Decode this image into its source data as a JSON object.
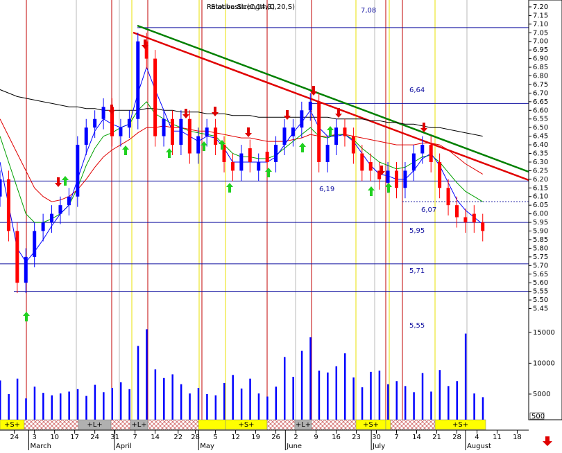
{
  "chart_data": {
    "type": "candlestick",
    "overlay_texts": [
      "Relative Strength(C,20,S)",
      "Stochastic(C,14,3)"
    ],
    "x": [
      0,
      3,
      6,
      9,
      12,
      15,
      18,
      21,
      24,
      27,
      30,
      33,
      36,
      39,
      42,
      45,
      48,
      51,
      54,
      57,
      60,
      63,
      66,
      69,
      72,
      75,
      78,
      81,
      84,
      87,
      90,
      93,
      96,
      99,
      102,
      105,
      108,
      111,
      114,
      117,
      120,
      123,
      126,
      129,
      132,
      135,
      138,
      141,
      144,
      147,
      150,
      153,
      156,
      159,
      162,
      165,
      168
    ],
    "open": [
      6.1,
      6.2,
      5.9,
      5.6,
      5.75,
      5.9,
      5.95,
      6.0,
      6.05,
      6.1,
      6.4,
      6.5,
      6.55,
      6.62,
      6.45,
      6.5,
      6.55,
      7.0,
      6.9,
      6.45,
      6.55,
      6.4,
      6.55,
      6.35,
      6.45,
      6.5,
      6.4,
      6.3,
      6.25,
      6.38,
      6.25,
      6.36,
      6.3,
      6.4,
      6.45,
      6.5,
      6.6,
      6.65,
      6.3,
      6.4,
      6.5,
      6.45,
      6.35,
      6.3,
      6.25,
      6.18,
      6.25,
      6.15,
      6.25,
      6.35,
      6.4,
      6.3,
      6.15,
      6.05,
      5.98,
      6.0,
      5.95
    ],
    "high": [
      6.25,
      6.25,
      5.95,
      5.8,
      5.95,
      6.0,
      6.05,
      6.1,
      6.15,
      6.45,
      6.55,
      6.6,
      6.67,
      6.67,
      6.55,
      6.6,
      7.05,
      7.05,
      6.95,
      6.6,
      6.6,
      6.6,
      6.6,
      6.5,
      6.55,
      6.55,
      6.45,
      6.35,
      6.4,
      6.43,
      6.35,
      6.41,
      6.45,
      6.55,
      6.55,
      6.65,
      6.7,
      6.7,
      6.45,
      6.55,
      6.55,
      6.5,
      6.4,
      6.35,
      6.3,
      6.3,
      6.3,
      6.3,
      6.4,
      6.45,
      6.45,
      6.35,
      6.2,
      6.1,
      6.03,
      6.05,
      6.0
    ],
    "low": [
      6.04,
      5.84,
      5.54,
      5.54,
      5.69,
      5.84,
      5.89,
      5.94,
      5.99,
      6.04,
      6.34,
      6.44,
      6.49,
      6.39,
      6.39,
      6.44,
      6.49,
      6.84,
      6.39,
      6.39,
      6.34,
      6.34,
      6.29,
      6.29,
      6.39,
      6.34,
      6.24,
      6.19,
      6.19,
      6.24,
      6.19,
      6.24,
      6.24,
      6.34,
      6.39,
      6.44,
      6.54,
      6.24,
      6.24,
      6.34,
      6.39,
      6.29,
      6.19,
      6.19,
      6.14,
      6.12,
      6.09,
      6.09,
      6.19,
      6.29,
      6.24,
      6.09,
      5.99,
      5.92,
      5.89,
      5.89,
      5.84
    ],
    "close": [
      6.2,
      5.9,
      5.6,
      5.75,
      5.9,
      5.95,
      6.0,
      6.05,
      6.1,
      6.4,
      6.5,
      6.55,
      6.62,
      6.45,
      6.5,
      6.55,
      7.0,
      6.9,
      6.45,
      6.55,
      6.4,
      6.55,
      6.35,
      6.45,
      6.5,
      6.4,
      6.3,
      6.25,
      6.35,
      6.3,
      6.3,
      6.3,
      6.4,
      6.5,
      6.5,
      6.6,
      6.65,
      6.3,
      6.4,
      6.5,
      6.45,
      6.35,
      6.25,
      6.25,
      6.2,
      6.25,
      6.15,
      6.25,
      6.35,
      6.4,
      6.3,
      6.15,
      6.05,
      5.98,
      5.95,
      5.95,
      5.9
    ],
    "up_color": "#0000ff",
    "down_color": "#ff0000",
    "xlim": [
      0,
      184
    ],
    "ylim": [
      5.42,
      7.24
    ],
    "yticks": [
      {
        "value": 7.2,
        "label": "7.20"
      },
      {
        "value": 7.15,
        "label": "7.15"
      },
      {
        "value": 7.1,
        "label": "7.10"
      },
      {
        "value": 7.05,
        "label": "7.05"
      },
      {
        "value": 7.0,
        "label": "7.00"
      },
      {
        "value": 6.95,
        "label": "6.95"
      },
      {
        "value": 6.9,
        "label": "6.90"
      },
      {
        "value": 6.85,
        "label": "6.85"
      },
      {
        "value": 6.8,
        "label": "6.80"
      },
      {
        "value": 6.75,
        "label": "6.75"
      },
      {
        "value": 6.7,
        "label": "6.70"
      },
      {
        "value": 6.65,
        "label": "6.65"
      },
      {
        "value": 6.6,
        "label": "6.60"
      },
      {
        "value": 6.55,
        "label": "6.55"
      },
      {
        "value": 6.5,
        "label": "6.50"
      },
      {
        "value": 6.45,
        "label": "6.45"
      },
      {
        "value": 6.4,
        "label": "6.40"
      },
      {
        "value": 6.35,
        "label": "6.35"
      },
      {
        "value": 6.3,
        "label": "6.30"
      },
      {
        "value": 6.25,
        "label": "6.25"
      },
      {
        "value": 6.2,
        "label": "6.20"
      },
      {
        "value": 6.15,
        "label": "6.15"
      },
      {
        "value": 6.1,
        "label": "6.10"
      },
      {
        "value": 6.05,
        "label": "6.05"
      },
      {
        "value": 6.0,
        "label": "6.00"
      },
      {
        "value": 5.95,
        "label": "5.95"
      },
      {
        "value": 5.9,
        "label": "5.90"
      },
      {
        "value": 5.85,
        "label": "5.85"
      },
      {
        "value": 5.8,
        "label": "5.80"
      },
      {
        "value": 5.75,
        "label": "5.75"
      },
      {
        "value": 5.7,
        "label": "5.70"
      },
      {
        "value": 5.65,
        "label": "5.65"
      },
      {
        "value": 5.6,
        "label": "5.60"
      },
      {
        "value": 5.55,
        "label": "5.55"
      },
      {
        "value": 5.5,
        "label": "5.50"
      },
      {
        "value": 5.45,
        "label": "5.45"
      }
    ],
    "moving_averages": [
      {
        "color": "#000000",
        "values": [
          6.72,
          6.7,
          6.68,
          6.67,
          6.66,
          6.65,
          6.64,
          6.63,
          6.62,
          6.62,
          6.61,
          6.61,
          6.6,
          6.6,
          6.6,
          6.6,
          6.6,
          6.61,
          6.61,
          6.6,
          6.6,
          6.59,
          6.59,
          6.59,
          6.58,
          6.58,
          6.58,
          6.57,
          6.57,
          6.57,
          6.56,
          6.56,
          6.56,
          6.56,
          6.56,
          6.56,
          6.56,
          6.56,
          6.56,
          6.55,
          6.55,
          6.55,
          6.55,
          6.54,
          6.54,
          6.53,
          6.53,
          6.52,
          6.52,
          6.51,
          6.5,
          6.5,
          6.49,
          6.48,
          6.47,
          6.46,
          6.45
        ]
      },
      {
        "color": "#e00000",
        "values": [
          6.55,
          6.45,
          6.35,
          6.25,
          6.15,
          6.1,
          6.07,
          6.08,
          6.1,
          6.14,
          6.2,
          6.27,
          6.33,
          6.37,
          6.4,
          6.43,
          6.47,
          6.5,
          6.5,
          6.51,
          6.5,
          6.5,
          6.49,
          6.48,
          6.48,
          6.47,
          6.46,
          6.45,
          6.44,
          6.44,
          6.43,
          6.42,
          6.42,
          6.42,
          6.43,
          6.44,
          6.46,
          6.45,
          6.45,
          6.46,
          6.46,
          6.45,
          6.44,
          6.43,
          6.42,
          6.41,
          6.4,
          6.4,
          6.4,
          6.41,
          6.41,
          6.4,
          6.37,
          6.33,
          6.29,
          6.26,
          6.23
        ]
      },
      {
        "color": "#00a000",
        "values": [
          6.45,
          6.3,
          6.15,
          6.0,
          5.95,
          5.95,
          5.97,
          6.0,
          6.05,
          6.15,
          6.28,
          6.38,
          6.45,
          6.47,
          6.5,
          6.52,
          6.6,
          6.65,
          6.58,
          6.55,
          6.52,
          6.5,
          6.48,
          6.47,
          6.46,
          6.45,
          6.4,
          6.35,
          6.33,
          6.33,
          6.32,
          6.32,
          6.34,
          6.38,
          6.42,
          6.46,
          6.5,
          6.45,
          6.44,
          6.46,
          6.46,
          6.43,
          6.38,
          6.34,
          6.3,
          6.28,
          6.26,
          6.27,
          6.3,
          6.33,
          6.34,
          6.3,
          6.24,
          6.18,
          6.13,
          6.1,
          6.07
        ]
      },
      {
        "color": "#0000ff",
        "values": [
          6.3,
          6.05,
          5.8,
          5.72,
          5.78,
          5.85,
          5.93,
          6.0,
          6.05,
          6.2,
          6.35,
          6.48,
          6.55,
          6.52,
          6.5,
          6.52,
          6.7,
          6.85,
          6.72,
          6.6,
          6.48,
          6.48,
          6.45,
          6.42,
          6.45,
          6.44,
          6.38,
          6.3,
          6.3,
          6.3,
          6.3,
          6.3,
          6.33,
          6.4,
          6.47,
          6.53,
          6.6,
          6.5,
          6.45,
          6.45,
          6.46,
          6.42,
          6.35,
          6.28,
          6.23,
          6.22,
          6.2,
          6.2,
          6.25,
          6.32,
          6.35,
          6.28,
          6.18,
          6.08,
          6.02,
          5.98,
          5.94
        ]
      }
    ],
    "levels": [
      {
        "value": 7.08,
        "label": "7,08"
      },
      {
        "value": 6.64,
        "label": "6,64"
      },
      {
        "value": 6.19,
        "label": "6,19"
      },
      {
        "value": 6.07,
        "label": "6,07"
      },
      {
        "value": 5.95,
        "label": "5,95"
      },
      {
        "value": 5.71,
        "label": "5,71"
      },
      {
        "value": 5.55,
        "label": "5,55"
      }
    ],
    "volume": {
      "color": "#0000ff",
      "values": [
        7200,
        5000,
        7500,
        4300,
        6200,
        5200,
        4800,
        5100,
        5400,
        5800,
        4700,
        6500,
        5300,
        6000,
        6900,
        5800,
        12800,
        15500,
        9000,
        7600,
        8200,
        6600,
        5100,
        6000,
        5000,
        4800,
        6800,
        8100,
        5900,
        7500,
        5100,
        4600,
        6200,
        11000,
        7800,
        12000,
        14200,
        8800,
        8500,
        9500,
        11600,
        7700,
        6100,
        8600,
        8800,
        6600,
        7100,
        6300,
        5300,
        8400,
        5400,
        8900,
        6300,
        7100,
        14800,
        5100,
        4500
      ],
      "ylim": [
        0,
        17000
      ],
      "yticks": [
        15000,
        10000,
        5000
      ]
    },
    "scale_box": "500",
    "signals": [
      "+S+",
      "+L+",
      "+L+",
      "+S+",
      "+L+",
      "+S+",
      "+S+"
    ],
    "xticks": [
      {
        "value": 5,
        "label": "24"
      },
      {
        "value": 12,
        "label": "3"
      },
      {
        "value": 19,
        "label": "10"
      },
      {
        "value": 26,
        "label": "17"
      },
      {
        "value": 33,
        "label": "24"
      },
      {
        "value": 40,
        "label": "31"
      },
      {
        "value": 47,
        "label": "7"
      },
      {
        "value": 54,
        "label": "14"
      },
      {
        "value": 62,
        "label": "22"
      },
      {
        "value": 68,
        "label": "28"
      },
      {
        "value": 75,
        "label": "5"
      },
      {
        "value": 82,
        "label": "12"
      },
      {
        "value": 89,
        "label": "19"
      },
      {
        "value": 96,
        "label": "26"
      },
      {
        "value": 103,
        "label": "2"
      },
      {
        "value": 110,
        "label": "9"
      },
      {
        "value": 117,
        "label": "16"
      },
      {
        "value": 124,
        "label": "23"
      },
      {
        "value": 131,
        "label": "30"
      },
      {
        "value": 138,
        "label": "7"
      },
      {
        "value": 145,
        "label": "14"
      },
      {
        "value": 152,
        "label": "21"
      },
      {
        "value": 159,
        "label": "28"
      },
      {
        "value": 166,
        "label": "4"
      },
      {
        "value": 173,
        "label": "11"
      },
      {
        "value": 180,
        "label": "18"
      }
    ],
    "months": [
      {
        "value": 10.5,
        "label": "March"
      },
      {
        "value": 40.3,
        "label": "April"
      },
      {
        "value": 69.6,
        "label": "May"
      },
      {
        "value": 99.8,
        "label": "June"
      },
      {
        "value": 129.7,
        "label": "July"
      },
      {
        "value": 162.5,
        "label": "August"
      }
    ]
  }
}
